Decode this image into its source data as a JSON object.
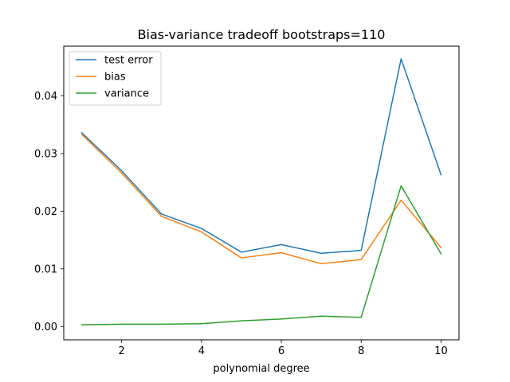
{
  "chart_data": {
    "type": "line",
    "title": "Bias-variance tradeoff bootstraps=110",
    "xlabel": "polynomial degree",
    "ylabel": "",
    "xlim": [
      0.55,
      10.45
    ],
    "ylim": [
      -0.0023,
      0.0486
    ],
    "x": [
      1,
      2,
      3,
      4,
      5,
      6,
      7,
      8,
      9,
      10
    ],
    "xticks": [
      2,
      4,
      6,
      8,
      10
    ],
    "xtick_labels": [
      "2",
      "4",
      "6",
      "8",
      "10"
    ],
    "yticks": [
      0.0,
      0.01,
      0.02,
      0.03,
      0.04
    ],
    "ytick_labels": [
      "0.00",
      "0.01",
      "0.02",
      "0.03",
      "0.04"
    ],
    "grid": false,
    "legend_position": "top-left",
    "series": [
      {
        "name": "test error",
        "color": "#1f77b4",
        "values": [
          0.0336,
          0.027,
          0.0195,
          0.017,
          0.0129,
          0.0142,
          0.0127,
          0.0132,
          0.0464,
          0.0263
        ]
      },
      {
        "name": "bias",
        "color": "#ff7f0e",
        "values": [
          0.0333,
          0.0266,
          0.0191,
          0.0164,
          0.0119,
          0.0128,
          0.0109,
          0.0116,
          0.0219,
          0.0137
        ]
      },
      {
        "name": "variance",
        "color": "#2ca02c",
        "values": [
          0.0003,
          0.0004,
          0.0004,
          0.0005,
          0.001,
          0.0013,
          0.0018,
          0.0016,
          0.0244,
          0.0126
        ]
      }
    ]
  }
}
